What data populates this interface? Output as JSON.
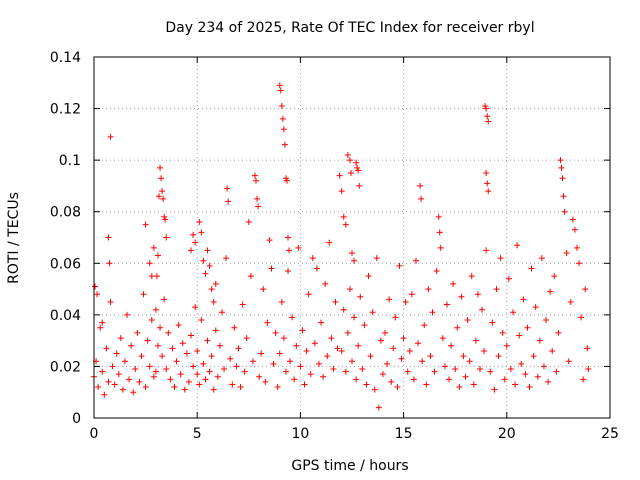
{
  "chart_data": {
    "type": "scatter",
    "title": "Day 234 of 2025, Rate Of TEC Index for receiver rbyl",
    "xlabel": "GPS time / hours",
    "ylabel": "ROTI / TECUs",
    "xlim": [
      0,
      25
    ],
    "ylim": [
      0,
      0.14
    ],
    "xticks": [
      0,
      5,
      10,
      15,
      20,
      25
    ],
    "xtick_labels": [
      "0",
      "5",
      "10",
      "15",
      "20",
      "25"
    ],
    "yticks": [
      0,
      0.02,
      0.04,
      0.06,
      0.08,
      0.1,
      0.12,
      0.14
    ],
    "ytick_labels": [
      "0",
      "0.02",
      "0.04",
      "0.06",
      "0.08",
      "0.1",
      "0.12",
      "0.14"
    ],
    "grid": true,
    "marker": "plus",
    "color": "#ff0000",
    "series": [
      {
        "name": "ROTI",
        "points": [
          [
            0.0,
            0.016
          ],
          [
            0.1,
            0.022
          ],
          [
            0.2,
            0.012
          ],
          [
            0.3,
            0.035
          ],
          [
            0.4,
            0.018
          ],
          [
            0.5,
            0.009
          ],
          [
            0.6,
            0.027
          ],
          [
            0.7,
            0.014
          ],
          [
            0.8,
            0.045
          ],
          [
            0.9,
            0.02
          ],
          [
            0.8,
            0.109
          ],
          [
            0.7,
            0.07
          ],
          [
            0.75,
            0.06
          ],
          [
            0.15,
            0.048
          ],
          [
            0.05,
            0.051
          ],
          [
            0.4,
            0.037
          ],
          [
            1.0,
            0.013
          ],
          [
            1.1,
            0.025
          ],
          [
            1.2,
            0.017
          ],
          [
            1.3,
            0.031
          ],
          [
            1.4,
            0.011
          ],
          [
            1.5,
            0.022
          ],
          [
            1.6,
            0.04
          ],
          [
            1.7,
            0.015
          ],
          [
            1.8,
            0.028
          ],
          [
            1.9,
            0.01
          ],
          [
            2.0,
            0.019
          ],
          [
            2.1,
            0.033
          ],
          [
            2.2,
            0.014
          ],
          [
            2.3,
            0.024
          ],
          [
            2.4,
            0.048
          ],
          [
            2.5,
            0.012
          ],
          [
            2.6,
            0.03
          ],
          [
            2.7,
            0.02
          ],
          [
            2.8,
            0.038
          ],
          [
            2.9,
            0.016
          ],
          [
            2.5,
            0.075
          ],
          [
            2.7,
            0.06
          ],
          [
            2.8,
            0.055
          ],
          [
            2.9,
            0.066
          ],
          [
            3.0,
            0.042
          ],
          [
            3.05,
            0.055
          ],
          [
            3.1,
            0.063
          ],
          [
            3.15,
            0.086
          ],
          [
            3.2,
            0.097
          ],
          [
            3.25,
            0.093
          ],
          [
            3.3,
            0.088
          ],
          [
            3.35,
            0.085
          ],
          [
            3.4,
            0.078
          ],
          [
            3.45,
            0.077
          ],
          [
            3.5,
            0.07
          ],
          [
            3.0,
            0.018
          ],
          [
            3.1,
            0.028
          ],
          [
            3.2,
            0.035
          ],
          [
            3.3,
            0.024
          ],
          [
            3.4,
            0.046
          ],
          [
            3.5,
            0.019
          ],
          [
            3.6,
            0.033
          ],
          [
            3.7,
            0.015
          ],
          [
            3.8,
            0.027
          ],
          [
            3.9,
            0.012
          ],
          [
            4.0,
            0.022
          ],
          [
            4.1,
            0.036
          ],
          [
            4.2,
            0.017
          ],
          [
            4.3,
            0.029
          ],
          [
            4.4,
            0.011
          ],
          [
            4.5,
            0.025
          ],
          [
            4.6,
            0.014
          ],
          [
            4.7,
            0.032
          ],
          [
            4.8,
            0.02
          ],
          [
            4.9,
            0.043
          ],
          [
            4.7,
            0.065
          ],
          [
            4.8,
            0.071
          ],
          [
            4.9,
            0.068
          ],
          [
            5.0,
            0.017
          ],
          [
            5.1,
            0.076
          ],
          [
            5.2,
            0.072
          ],
          [
            5.3,
            0.061
          ],
          [
            5.4,
            0.056
          ],
          [
            5.5,
            0.065
          ],
          [
            5.6,
            0.059
          ],
          [
            5.7,
            0.05
          ],
          [
            5.8,
            0.045
          ],
          [
            5.9,
            0.052
          ],
          [
            5.0,
            0.026
          ],
          [
            5.1,
            0.013
          ],
          [
            5.2,
            0.038
          ],
          [
            5.3,
            0.021
          ],
          [
            5.4,
            0.015
          ],
          [
            5.5,
            0.03
          ],
          [
            5.6,
            0.018
          ],
          [
            5.7,
            0.024
          ],
          [
            5.8,
            0.011
          ],
          [
            5.9,
            0.034
          ],
          [
            6.0,
            0.016
          ],
          [
            6.1,
            0.028
          ],
          [
            6.2,
            0.041
          ],
          [
            6.3,
            0.019
          ],
          [
            6.4,
            0.062
          ],
          [
            6.45,
            0.089
          ],
          [
            6.5,
            0.084
          ],
          [
            6.6,
            0.023
          ],
          [
            6.7,
            0.013
          ],
          [
            6.8,
            0.035
          ],
          [
            6.9,
            0.02
          ],
          [
            7.0,
            0.027
          ],
          [
            7.1,
            0.012
          ],
          [
            7.2,
            0.044
          ],
          [
            7.3,
            0.018
          ],
          [
            7.4,
            0.031
          ],
          [
            7.5,
            0.076
          ],
          [
            7.6,
            0.055
          ],
          [
            7.7,
            0.022
          ],
          [
            7.8,
            0.094
          ],
          [
            7.85,
            0.092
          ],
          [
            7.9,
            0.085
          ],
          [
            7.95,
            0.082
          ],
          [
            8.0,
            0.016
          ],
          [
            8.1,
            0.025
          ],
          [
            8.2,
            0.05
          ],
          [
            8.3,
            0.014
          ],
          [
            8.4,
            0.037
          ],
          [
            8.5,
            0.069
          ],
          [
            8.6,
            0.058
          ],
          [
            8.7,
            0.021
          ],
          [
            8.8,
            0.033
          ],
          [
            8.9,
            0.012
          ],
          [
            9.0,
            0.129
          ],
          [
            9.05,
            0.127
          ],
          [
            9.1,
            0.121
          ],
          [
            9.15,
            0.116
          ],
          [
            9.2,
            0.112
          ],
          [
            9.25,
            0.106
          ],
          [
            9.3,
            0.093
          ],
          [
            9.35,
            0.092
          ],
          [
            9.4,
            0.07
          ],
          [
            9.45,
            0.065
          ],
          [
            9.0,
            0.025
          ],
          [
            9.1,
            0.045
          ],
          [
            9.2,
            0.031
          ],
          [
            9.3,
            0.018
          ],
          [
            9.4,
            0.057
          ],
          [
            9.5,
            0.022
          ],
          [
            9.6,
            0.039
          ],
          [
            9.7,
            0.015
          ],
          [
            9.8,
            0.028
          ],
          [
            9.9,
            0.066
          ],
          [
            10.0,
            0.02
          ],
          [
            10.1,
            0.034
          ],
          [
            10.2,
            0.013
          ],
          [
            10.3,
            0.026
          ],
          [
            10.4,
            0.048
          ],
          [
            10.5,
            0.017
          ],
          [
            10.6,
            0.062
          ],
          [
            10.7,
            0.029
          ],
          [
            10.8,
            0.058
          ],
          [
            10.9,
            0.021
          ],
          [
            11.0,
            0.037
          ],
          [
            11.1,
            0.016
          ],
          [
            11.2,
            0.052
          ],
          [
            11.3,
            0.024
          ],
          [
            11.4,
            0.068
          ],
          [
            11.5,
            0.031
          ],
          [
            11.6,
            0.019
          ],
          [
            11.7,
            0.045
          ],
          [
            11.8,
            0.027
          ],
          [
            11.9,
            0.094
          ],
          [
            12.0,
            0.088
          ],
          [
            12.1,
            0.078
          ],
          [
            12.2,
            0.075
          ],
          [
            12.3,
            0.102
          ],
          [
            12.4,
            0.1
          ],
          [
            12.45,
            0.095
          ],
          [
            12.5,
            0.064
          ],
          [
            12.6,
            0.061
          ],
          [
            12.7,
            0.099
          ],
          [
            12.75,
            0.097
          ],
          [
            12.8,
            0.096
          ],
          [
            12.85,
            0.09
          ],
          [
            12.0,
            0.026
          ],
          [
            12.1,
            0.042
          ],
          [
            12.2,
            0.018
          ],
          [
            12.3,
            0.033
          ],
          [
            12.4,
            0.05
          ],
          [
            12.5,
            0.022
          ],
          [
            12.6,
            0.039
          ],
          [
            12.7,
            0.015
          ],
          [
            12.8,
            0.028
          ],
          [
            12.9,
            0.047
          ],
          [
            13.0,
            0.019
          ],
          [
            13.1,
            0.036
          ],
          [
            13.2,
            0.013
          ],
          [
            13.3,
            0.055
          ],
          [
            13.4,
            0.024
          ],
          [
            13.5,
            0.041
          ],
          [
            13.6,
            0.011
          ],
          [
            13.7,
            0.062
          ],
          [
            13.8,
            0.004
          ],
          [
            13.9,
            0.03
          ],
          [
            14.0,
            0.017
          ],
          [
            14.1,
            0.033
          ],
          [
            14.2,
            0.021
          ],
          [
            14.3,
            0.046
          ],
          [
            14.4,
            0.014
          ],
          [
            14.5,
            0.027
          ],
          [
            14.6,
            0.039
          ],
          [
            14.7,
            0.012
          ],
          [
            14.8,
            0.059
          ],
          [
            14.9,
            0.023
          ],
          [
            15.0,
            0.031
          ],
          [
            15.1,
            0.045
          ],
          [
            15.2,
            0.018
          ],
          [
            15.3,
            0.026
          ],
          [
            15.4,
            0.048
          ],
          [
            15.5,
            0.015
          ],
          [
            15.6,
            0.061
          ],
          [
            15.7,
            0.029
          ],
          [
            15.8,
            0.09
          ],
          [
            15.85,
            0.085
          ],
          [
            15.9,
            0.022
          ],
          [
            16.0,
            0.036
          ],
          [
            16.1,
            0.013
          ],
          [
            16.2,
            0.05
          ],
          [
            16.3,
            0.024
          ],
          [
            16.4,
            0.041
          ],
          [
            16.5,
            0.018
          ],
          [
            16.6,
            0.057
          ],
          [
            16.7,
            0.078
          ],
          [
            16.75,
            0.072
          ],
          [
            16.8,
            0.066
          ],
          [
            16.9,
            0.031
          ],
          [
            17.0,
            0.02
          ],
          [
            17.1,
            0.044
          ],
          [
            17.2,
            0.015
          ],
          [
            17.3,
            0.028
          ],
          [
            17.4,
            0.052
          ],
          [
            17.5,
            0.019
          ],
          [
            17.6,
            0.035
          ],
          [
            17.7,
            0.012
          ],
          [
            17.8,
            0.047
          ],
          [
            17.9,
            0.024
          ],
          [
            18.0,
            0.016
          ],
          [
            18.1,
            0.038
          ],
          [
            18.2,
            0.022
          ],
          [
            18.3,
            0.055
          ],
          [
            18.4,
            0.013
          ],
          [
            18.5,
            0.03
          ],
          [
            18.6,
            0.048
          ],
          [
            18.7,
            0.019
          ],
          [
            18.8,
            0.042
          ],
          [
            18.9,
            0.026
          ],
          [
            18.95,
            0.121
          ],
          [
            19.0,
            0.12
          ],
          [
            19.05,
            0.117
          ],
          [
            19.1,
            0.115
          ],
          [
            19.0,
            0.095
          ],
          [
            19.05,
            0.091
          ],
          [
            19.1,
            0.088
          ],
          [
            19.0,
            0.065
          ],
          [
            19.2,
            0.018
          ],
          [
            19.3,
            0.037
          ],
          [
            19.4,
            0.011
          ],
          [
            19.5,
            0.05
          ],
          [
            19.6,
            0.024
          ],
          [
            19.7,
            0.062
          ],
          [
            19.8,
            0.033
          ],
          [
            19.9,
            0.015
          ],
          [
            20.0,
            0.028
          ],
          [
            20.1,
            0.054
          ],
          [
            20.2,
            0.019
          ],
          [
            20.3,
            0.041
          ],
          [
            20.4,
            0.013
          ],
          [
            20.5,
            0.067
          ],
          [
            20.6,
            0.032
          ],
          [
            20.7,
            0.021
          ],
          [
            20.8,
            0.046
          ],
          [
            20.9,
            0.017
          ],
          [
            21.0,
            0.035
          ],
          [
            21.1,
            0.012
          ],
          [
            21.2,
            0.058
          ],
          [
            21.3,
            0.024
          ],
          [
            21.4,
            0.043
          ],
          [
            21.5,
            0.016
          ],
          [
            21.6,
            0.03
          ],
          [
            21.7,
            0.062
          ],
          [
            21.8,
            0.02
          ],
          [
            21.9,
            0.038
          ],
          [
            22.0,
            0.014
          ],
          [
            22.1,
            0.049
          ],
          [
            22.2,
            0.026
          ],
          [
            22.3,
            0.055
          ],
          [
            22.4,
            0.018
          ],
          [
            22.5,
            0.033
          ],
          [
            22.6,
            0.1
          ],
          [
            22.65,
            0.097
          ],
          [
            22.7,
            0.093
          ],
          [
            22.75,
            0.086
          ],
          [
            22.8,
            0.08
          ],
          [
            22.9,
            0.064
          ],
          [
            23.0,
            0.022
          ],
          [
            23.1,
            0.045
          ],
          [
            23.2,
            0.077
          ],
          [
            23.3,
            0.073
          ],
          [
            23.4,
            0.066
          ],
          [
            23.5,
            0.06
          ],
          [
            23.6,
            0.039
          ],
          [
            23.7,
            0.015
          ],
          [
            23.8,
            0.05
          ],
          [
            23.9,
            0.027
          ],
          [
            23.95,
            0.019
          ]
        ]
      }
    ]
  }
}
